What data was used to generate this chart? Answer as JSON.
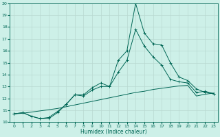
{
  "xlabel": "Humidex (Indice chaleur)",
  "xlim": [
    -0.5,
    23.5
  ],
  "ylim": [
    10,
    20
  ],
  "yticks": [
    10,
    11,
    12,
    13,
    14,
    15,
    16,
    17,
    18,
    19,
    20
  ],
  "xticks": [
    0,
    1,
    2,
    3,
    4,
    5,
    6,
    7,
    8,
    9,
    10,
    11,
    12,
    13,
    14,
    15,
    16,
    17,
    18,
    19,
    20,
    21,
    22,
    23
  ],
  "bg_color": "#cdf0e8",
  "grid_color": "#b8d8d0",
  "line_color": "#006655",
  "line1_x": [
    0,
    1,
    2,
    3,
    4,
    5,
    6,
    7,
    8,
    9,
    10,
    11,
    12,
    13,
    14,
    15,
    16,
    17,
    18,
    19,
    20,
    21,
    22,
    23
  ],
  "line1_y": [
    10.7,
    10.8,
    10.5,
    10.3,
    10.3,
    10.8,
    11.5,
    12.3,
    12.3,
    12.9,
    13.3,
    13.0,
    15.2,
    16.0,
    20.0,
    17.5,
    16.6,
    16.5,
    15.0,
    13.8,
    13.5,
    12.8,
    12.5,
    12.4
  ],
  "line2_x": [
    0,
    1,
    2,
    3,
    4,
    5,
    6,
    7,
    8,
    9,
    10,
    11,
    12,
    13,
    14,
    15,
    16,
    17,
    18,
    19,
    20,
    21,
    22,
    23
  ],
  "line2_y": [
    10.7,
    10.8,
    10.5,
    10.3,
    10.4,
    10.9,
    11.5,
    12.3,
    12.2,
    12.7,
    13.0,
    13.0,
    14.2,
    15.2,
    17.8,
    16.4,
    15.5,
    14.8,
    13.6,
    13.4,
    13.3,
    12.5,
    12.6,
    12.4
  ],
  "line3_x": [
    0,
    1,
    2,
    3,
    4,
    5,
    6,
    7,
    8,
    9,
    10,
    11,
    12,
    13,
    14,
    15,
    16,
    17,
    18,
    19,
    20,
    21,
    22,
    23
  ],
  "line3_y": [
    10.7,
    10.75,
    10.85,
    10.95,
    11.05,
    11.15,
    11.3,
    11.45,
    11.6,
    11.75,
    11.9,
    12.05,
    12.2,
    12.35,
    12.5,
    12.6,
    12.75,
    12.85,
    12.95,
    13.05,
    13.1,
    12.2,
    12.35,
    12.45
  ]
}
